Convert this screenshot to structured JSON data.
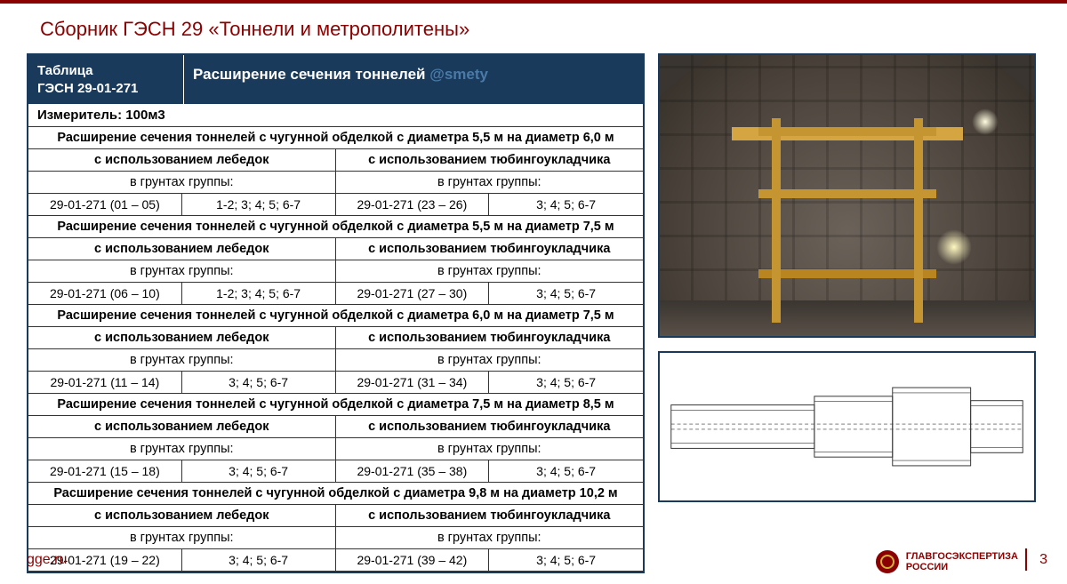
{
  "title": "Сборник ГЭСН 29 «Тоннели и метрополитены»",
  "table": {
    "header_left": "Таблица\nГЭСН 29-01-271",
    "header_right": "Расширение сечения тоннелей",
    "watermark": "@smety",
    "measurer": "Измеритель: 100м3",
    "method_left": "с использованием лебедок",
    "method_right": "с использованием тюбингоукладчика",
    "groups_label": "в грунтах группы:",
    "sections": [
      {
        "title": "Расширение сечения тоннелей с чугунной обделкой с диаметра 5,5 м на диаметр 6,0 м",
        "code_l": "29-01-271 (01 – 05)",
        "grp_l": "1-2; 3; 4; 5; 6-7",
        "code_r": "29-01-271 (23 – 26)",
        "grp_r": "3; 4; 5; 6-7"
      },
      {
        "title": "Расширение сечения тоннелей с чугунной обделкой с диаметра 5,5 м на диаметр 7,5 м",
        "code_l": "29-01-271 (06 – 10)",
        "grp_l": "1-2; 3; 4; 5; 6-7",
        "code_r": "29-01-271 (27 – 30)",
        "grp_r": "3; 4; 5; 6-7"
      },
      {
        "title": "Расширение сечения тоннелей с чугунной обделкой с диаметра 6,0 м на диаметр 7,5 м",
        "code_l": "29-01-271 (11 – 14)",
        "grp_l": "3; 4; 5; 6-7",
        "code_r": "29-01-271 (31 – 34)",
        "grp_r": "3; 4; 5; 6-7"
      },
      {
        "title": "Расширение сечения тоннелей с чугунной обделкой с диаметра 7,5 м на диаметр 8,5 м",
        "code_l": "29-01-271 (15 – 18)",
        "grp_l": "3; 4; 5; 6-7",
        "code_r": "29-01-271 (35 – 38)",
        "grp_r": "3; 4; 5; 6-7"
      },
      {
        "title": "Расширение сечения тоннелей с чугунной обделкой с диаметра 9,8 м на диаметр 10,2 м",
        "code_l": "29-01-271 (19 – 22)",
        "grp_l": "3; 4; 5; 6-7",
        "code_r": "29-01-271 (39 – 42)",
        "grp_r": "3; 4; 5; 6-7"
      }
    ]
  },
  "footer": {
    "url": "gge.ru",
    "logo_line1": "ГЛАВГОСЭКСПЕРТИЗА",
    "logo_line2": "РОССИИ",
    "page": "3"
  },
  "colors": {
    "accent_red": "#8b0000",
    "header_blue": "#1a3a5c",
    "watermark_blue": "#4a7ba8"
  }
}
